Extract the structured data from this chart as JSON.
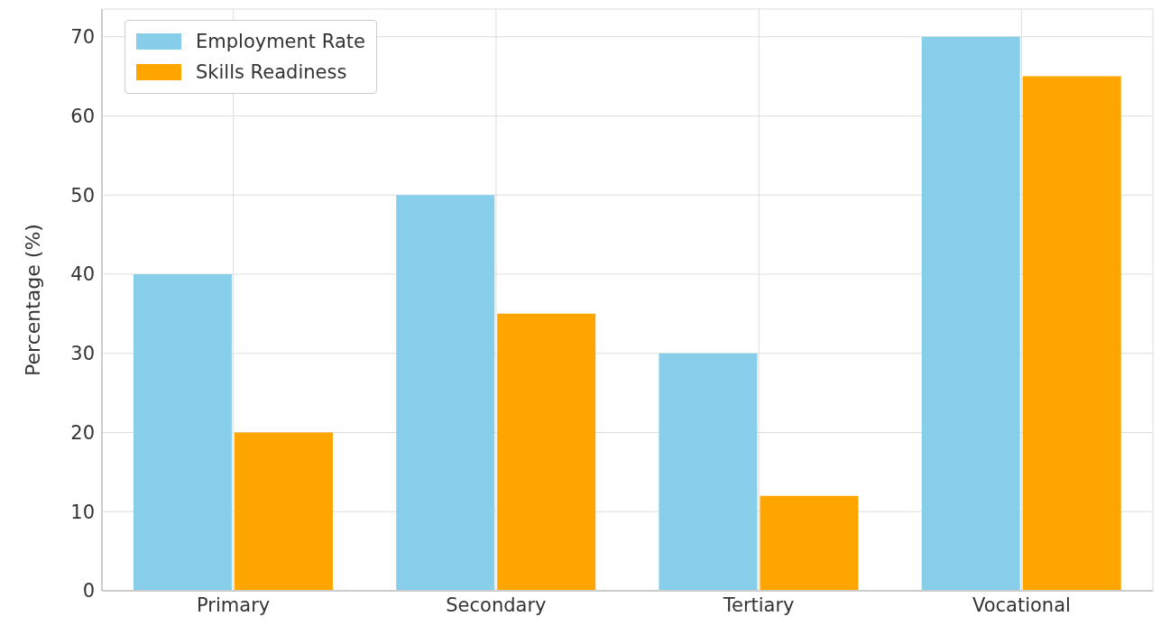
{
  "chart_data": {
    "type": "bar",
    "ylabel": "Percentage (%)",
    "categories": [
      "Primary",
      "Secondary",
      "Tertiary",
      "Vocational"
    ],
    "series": [
      {
        "name": "Employment Rate",
        "color": "#87ceeb",
        "values": [
          40,
          50,
          30,
          70
        ]
      },
      {
        "name": "Skills Readiness",
        "color": "#ffa500",
        "values": [
          20,
          35,
          12,
          65
        ]
      }
    ],
    "ylim": [
      0,
      73.5
    ],
    "yticks": [
      0,
      10,
      20,
      30,
      40,
      50,
      60,
      70
    ],
    "grid": true,
    "legend": "top left"
  }
}
